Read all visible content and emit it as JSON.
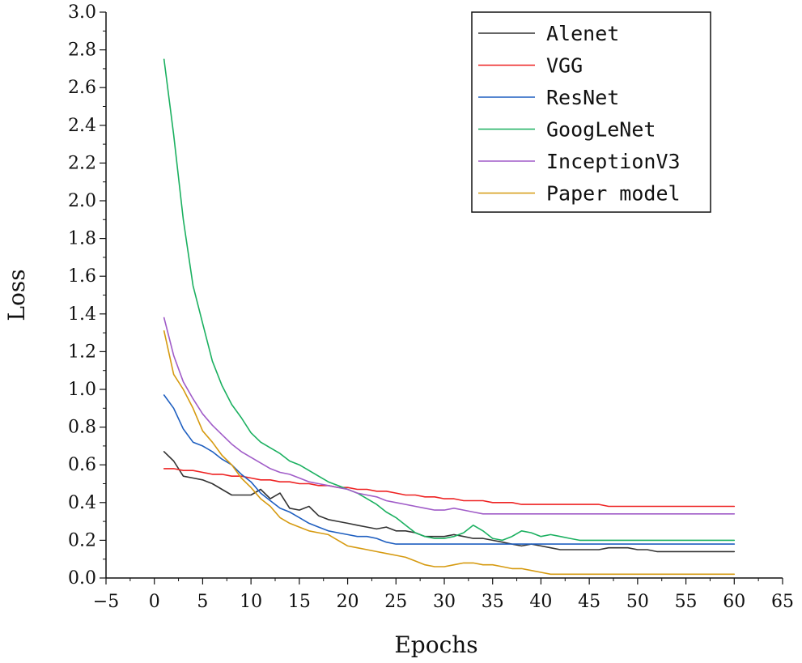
{
  "chart_data": {
    "type": "line",
    "xlabel": "Epochs",
    "ylabel": "Loss",
    "xlim": [
      -5,
      65
    ],
    "ylim": [
      0.0,
      3.0
    ],
    "x_ticks": [
      -5,
      0,
      5,
      10,
      15,
      20,
      25,
      30,
      35,
      40,
      45,
      50,
      55,
      60,
      65
    ],
    "x_tick_labels": [
      "−5",
      "0",
      "5",
      "10",
      "15",
      "20",
      "25",
      "30",
      "35",
      "40",
      "45",
      "50",
      "55",
      "60",
      "65"
    ],
    "y_ticks": [
      0.0,
      0.2,
      0.4,
      0.6,
      0.8,
      1.0,
      1.2,
      1.4,
      1.6,
      1.8,
      2.0,
      2.2,
      2.4,
      2.6,
      2.8,
      3.0
    ],
    "y_tick_labels": [
      "0.0",
      "0.2",
      "0.4",
      "0.6",
      "0.8",
      "1.0",
      "1.2",
      "1.4",
      "1.6",
      "1.8",
      "2.0",
      "2.2",
      "2.4",
      "2.6",
      "2.8",
      "3.0"
    ],
    "grid": false,
    "legend_position": "top-right",
    "x": [
      1,
      2,
      3,
      4,
      5,
      6,
      7,
      8,
      9,
      10,
      11,
      12,
      13,
      14,
      15,
      16,
      17,
      18,
      19,
      20,
      21,
      22,
      23,
      24,
      25,
      26,
      27,
      28,
      29,
      30,
      31,
      32,
      33,
      34,
      35,
      36,
      37,
      38,
      39,
      40,
      41,
      42,
      43,
      44,
      45,
      46,
      47,
      48,
      49,
      50,
      51,
      52,
      53,
      54,
      55,
      56,
      57,
      58,
      59,
      60
    ],
    "series": [
      {
        "name": "Alenet",
        "color": "#333333",
        "values": [
          0.67,
          0.62,
          0.54,
          0.53,
          0.52,
          0.5,
          0.47,
          0.44,
          0.44,
          0.44,
          0.47,
          0.42,
          0.45,
          0.37,
          0.36,
          0.38,
          0.33,
          0.31,
          0.3,
          0.29,
          0.28,
          0.27,
          0.26,
          0.27,
          0.25,
          0.25,
          0.24,
          0.22,
          0.22,
          0.22,
          0.23,
          0.22,
          0.21,
          0.21,
          0.2,
          0.19,
          0.18,
          0.17,
          0.18,
          0.17,
          0.16,
          0.15,
          0.15,
          0.15,
          0.15,
          0.15,
          0.16,
          0.16,
          0.16,
          0.15,
          0.15,
          0.14,
          0.14,
          0.14,
          0.14,
          0.14,
          0.14,
          0.14,
          0.14,
          0.14
        ]
      },
      {
        "name": "VGG",
        "color": "#ee2222",
        "values": [
          0.58,
          0.58,
          0.57,
          0.57,
          0.56,
          0.55,
          0.55,
          0.54,
          0.54,
          0.53,
          0.52,
          0.52,
          0.51,
          0.51,
          0.5,
          0.5,
          0.49,
          0.49,
          0.48,
          0.48,
          0.47,
          0.47,
          0.46,
          0.46,
          0.45,
          0.44,
          0.44,
          0.43,
          0.43,
          0.42,
          0.42,
          0.41,
          0.41,
          0.41,
          0.4,
          0.4,
          0.4,
          0.39,
          0.39,
          0.39,
          0.39,
          0.39,
          0.39,
          0.39,
          0.39,
          0.39,
          0.38,
          0.38,
          0.38,
          0.38,
          0.38,
          0.38,
          0.38,
          0.38,
          0.38,
          0.38,
          0.38,
          0.38,
          0.38,
          0.38
        ]
      },
      {
        "name": "ResNet",
        "color": "#1f5fc0",
        "values": [
          0.97,
          0.9,
          0.79,
          0.72,
          0.7,
          0.67,
          0.63,
          0.6,
          0.55,
          0.51,
          0.45,
          0.41,
          0.37,
          0.35,
          0.32,
          0.29,
          0.27,
          0.25,
          0.24,
          0.23,
          0.22,
          0.22,
          0.21,
          0.19,
          0.18,
          0.18,
          0.18,
          0.18,
          0.18,
          0.18,
          0.18,
          0.18,
          0.18,
          0.18,
          0.18,
          0.18,
          0.18,
          0.18,
          0.18,
          0.18,
          0.18,
          0.18,
          0.18,
          0.18,
          0.18,
          0.18,
          0.18,
          0.18,
          0.18,
          0.18,
          0.18,
          0.18,
          0.18,
          0.18,
          0.18,
          0.18,
          0.18,
          0.18,
          0.18,
          0.18
        ]
      },
      {
        "name": "GoogLeNet",
        "color": "#1bb060",
        "values": [
          2.75,
          2.35,
          1.9,
          1.55,
          1.35,
          1.15,
          1.02,
          0.92,
          0.85,
          0.77,
          0.72,
          0.69,
          0.66,
          0.62,
          0.6,
          0.57,
          0.54,
          0.51,
          0.49,
          0.47,
          0.45,
          0.42,
          0.39,
          0.35,
          0.32,
          0.28,
          0.24,
          0.22,
          0.21,
          0.21,
          0.22,
          0.24,
          0.28,
          0.25,
          0.21,
          0.2,
          0.22,
          0.25,
          0.24,
          0.22,
          0.23,
          0.22,
          0.21,
          0.2,
          0.2,
          0.2,
          0.2,
          0.2,
          0.2,
          0.2,
          0.2,
          0.2,
          0.2,
          0.2,
          0.2,
          0.2,
          0.2,
          0.2,
          0.2,
          0.2
        ]
      },
      {
        "name": "InceptionV3",
        "color": "#a05cc8",
        "values": [
          1.38,
          1.18,
          1.04,
          0.95,
          0.87,
          0.81,
          0.76,
          0.71,
          0.67,
          0.64,
          0.61,
          0.58,
          0.56,
          0.55,
          0.53,
          0.51,
          0.5,
          0.49,
          0.48,
          0.47,
          0.45,
          0.44,
          0.43,
          0.41,
          0.4,
          0.39,
          0.38,
          0.37,
          0.36,
          0.36,
          0.37,
          0.36,
          0.35,
          0.34,
          0.34,
          0.34,
          0.34,
          0.34,
          0.34,
          0.34,
          0.34,
          0.34,
          0.34,
          0.34,
          0.34,
          0.34,
          0.34,
          0.34,
          0.34,
          0.34,
          0.34,
          0.34,
          0.34,
          0.34,
          0.34,
          0.34,
          0.34,
          0.34,
          0.34,
          0.34
        ]
      },
      {
        "name": "Paper model",
        "color": "#d69a10",
        "values": [
          1.31,
          1.08,
          1.0,
          0.9,
          0.78,
          0.72,
          0.65,
          0.6,
          0.53,
          0.48,
          0.42,
          0.38,
          0.32,
          0.29,
          0.27,
          0.25,
          0.24,
          0.23,
          0.2,
          0.17,
          0.16,
          0.15,
          0.14,
          0.13,
          0.12,
          0.11,
          0.09,
          0.07,
          0.06,
          0.06,
          0.07,
          0.08,
          0.08,
          0.07,
          0.07,
          0.06,
          0.05,
          0.05,
          0.04,
          0.03,
          0.02,
          0.02,
          0.02,
          0.02,
          0.02,
          0.02,
          0.02,
          0.02,
          0.02,
          0.02,
          0.02,
          0.02,
          0.02,
          0.02,
          0.02,
          0.02,
          0.02,
          0.02,
          0.02,
          0.02
        ]
      }
    ]
  }
}
